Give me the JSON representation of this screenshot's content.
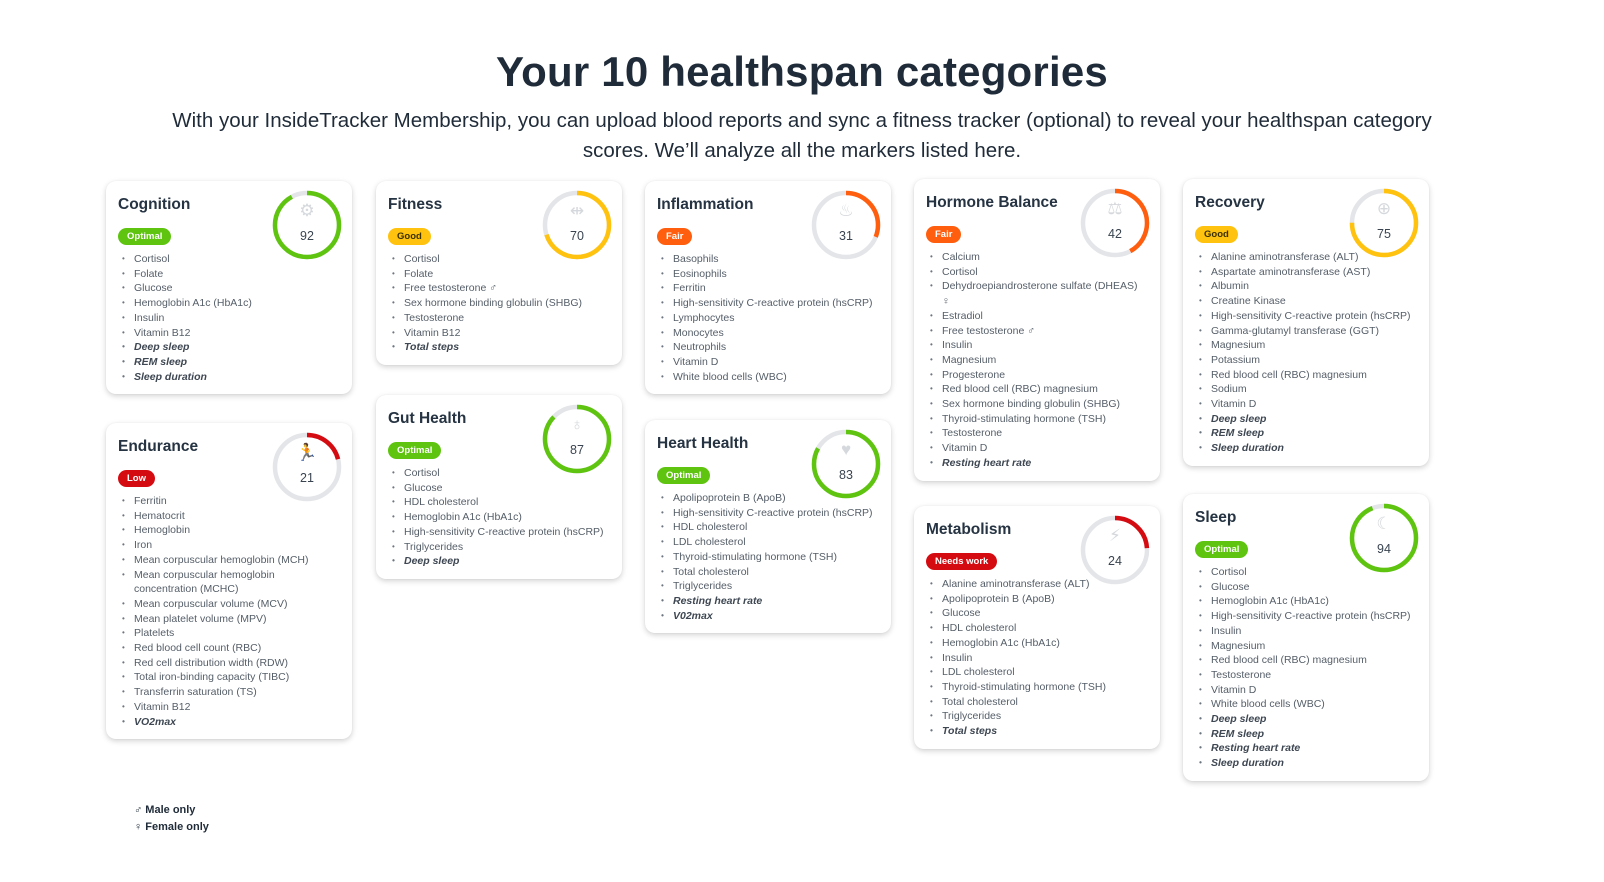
{
  "header": {
    "title": "Your 10 healthspan categories",
    "subtitle": "With your InsideTracker Membership, you can upload blood reports and sync a fitness tracker (optional) to reveal your healthspan category scores. We’ll analyze all the markers listed here."
  },
  "colors": {
    "optimal": "#5ec40f",
    "good": "#ffc20e",
    "fair": "#ff5e0e",
    "low": "#d50b12",
    "needs_work": "#d50b12",
    "track": "#e3e5e8"
  },
  "categories": [
    {
      "name": "Cognition",
      "score": 92,
      "status": "Optimal",
      "icon": "gears-icon",
      "markers": [
        "Cortisol",
        "Folate",
        "Glucose",
        "Hemoglobin A1c (HbA1c)",
        "Insulin",
        "Vitamin B12"
      ],
      "tracker_markers": [
        "Deep sleep",
        "REM sleep",
        "Sleep duration"
      ]
    },
    {
      "name": "Endurance",
      "score": 21,
      "status": "Low",
      "icon": "running-icon",
      "markers": [
        "Ferritin",
        "Hematocrit",
        "Hemoglobin",
        "Iron",
        "Mean corpuscular hemoglobin (MCH)",
        "Mean corpuscular hemoglobin concentration (MCHC)",
        "Mean corpuscular volume (MCV)",
        "Mean platelet volume (MPV)",
        "Platelets",
        "Red blood cell count (RBC)",
        "Red cell distribution width (RDW)",
        "Total iron-binding capacity (TIBC)",
        "Transferrin saturation (TS)",
        "Vitamin B12"
      ],
      "tracker_markers": [
        "VO2max"
      ]
    },
    {
      "name": "Fitness",
      "score": 70,
      "status": "Good",
      "icon": "dumbbell-icon",
      "markers": [
        "Cortisol",
        "Folate",
        "Free testosterone ♂",
        "Sex hormone binding globulin (SHBG)",
        "Testosterone",
        "Vitamin B12"
      ],
      "tracker_markers": [
        "Total steps"
      ]
    },
    {
      "name": "Gut Health",
      "score": 87,
      "status": "Optimal",
      "icon": "stomach-icon",
      "markers": [
        "Cortisol",
        "Glucose",
        "HDL cholesterol",
        "Hemoglobin A1c (HbA1c)",
        "High-sensitivity C-reactive protein (hsCRP)",
        "Triglycerides"
      ],
      "tracker_markers": [
        "Deep sleep"
      ]
    },
    {
      "name": "Inflammation",
      "score": 31,
      "status": "Fair",
      "icon": "flame-icon",
      "markers": [
        "Basophils",
        "Eosinophils",
        "Ferritin",
        "High-sensitivity C-reactive protein (hsCRP)",
        "Lymphocytes",
        "Monocytes",
        "Neutrophils",
        "Vitamin D",
        "White blood cells (WBC)"
      ],
      "tracker_markers": []
    },
    {
      "name": "Heart Health",
      "score": 83,
      "status": "Optimal",
      "icon": "heart-icon",
      "markers": [
        "Apolipoprotein B (ApoB)",
        "High-sensitivity C-reactive protein (hsCRP)",
        "HDL cholesterol",
        "LDL cholesterol",
        "Thyroid-stimulating hormone (TSH)",
        "Total cholesterol",
        "Triglycerides"
      ],
      "tracker_markers": [
        "Resting heart rate",
        "V02max"
      ]
    },
    {
      "name": "Hormone Balance",
      "score": 42,
      "status": "Fair",
      "icon": "scales-icon",
      "markers": [
        "Calcium",
        "Cortisol",
        "Dehydroepiandrosterone sulfate (DHEAS) ♀",
        "Estradiol",
        "Free testosterone ♂",
        "Insulin",
        "Magnesium",
        "Progesterone",
        "Red blood cell (RBC) magnesium",
        "Sex hormone binding globulin (SHBG)",
        "Thyroid-stimulating hormone (TSH)",
        "Testosterone",
        "Vitamin D"
      ],
      "tracker_markers": [
        "Resting heart rate"
      ]
    },
    {
      "name": "Metabolism",
      "score": 24,
      "status": "Needs work",
      "icon": "lightning-icon",
      "markers": [
        "Alanine aminotransferase (ALT)",
        "Apolipoprotein B (ApoB)",
        "Glucose",
        "HDL cholesterol",
        "Hemoglobin A1c (HbA1c)",
        "Insulin",
        "LDL cholesterol",
        "Thyroid-stimulating hormone (TSH)",
        "Total cholesterol",
        "Triglycerides"
      ],
      "tracker_markers": [
        "Total steps"
      ]
    },
    {
      "name": "Recovery",
      "score": 75,
      "status": "Good",
      "icon": "recovery-icon",
      "markers": [
        "Alanine aminotransferase (ALT)",
        "Aspartate aminotransferase (AST)",
        "Albumin",
        "Creatine Kinase",
        "High-sensitivity C-reactive protein (hsCRP)",
        "Gamma-glutamyl transferase (GGT)",
        "Magnesium",
        "Potassium",
        "Red blood cell (RBC) magnesium",
        "Sodium",
        "Vitamin D"
      ],
      "tracker_markers": [
        "Deep sleep",
        "REM sleep",
        "Sleep duration"
      ]
    },
    {
      "name": "Sleep",
      "score": 94,
      "status": "Optimal",
      "icon": "moon-icon",
      "markers": [
        "Cortisol",
        "Glucose",
        "Hemoglobin A1c (HbA1c)",
        "High-sensitivity C-reactive protein (hsCRP)",
        "Insulin",
        "Magnesium",
        "Red blood cell (RBC) magnesium",
        "Testosterone",
        "Vitamin D",
        "White blood cells (WBC)"
      ],
      "tracker_markers": [
        "Deep sleep",
        "REM sleep",
        "Resting heart rate",
        "Sleep duration"
      ]
    }
  ],
  "legend": {
    "male": "♂ Male only",
    "female": "♀ Female only"
  }
}
